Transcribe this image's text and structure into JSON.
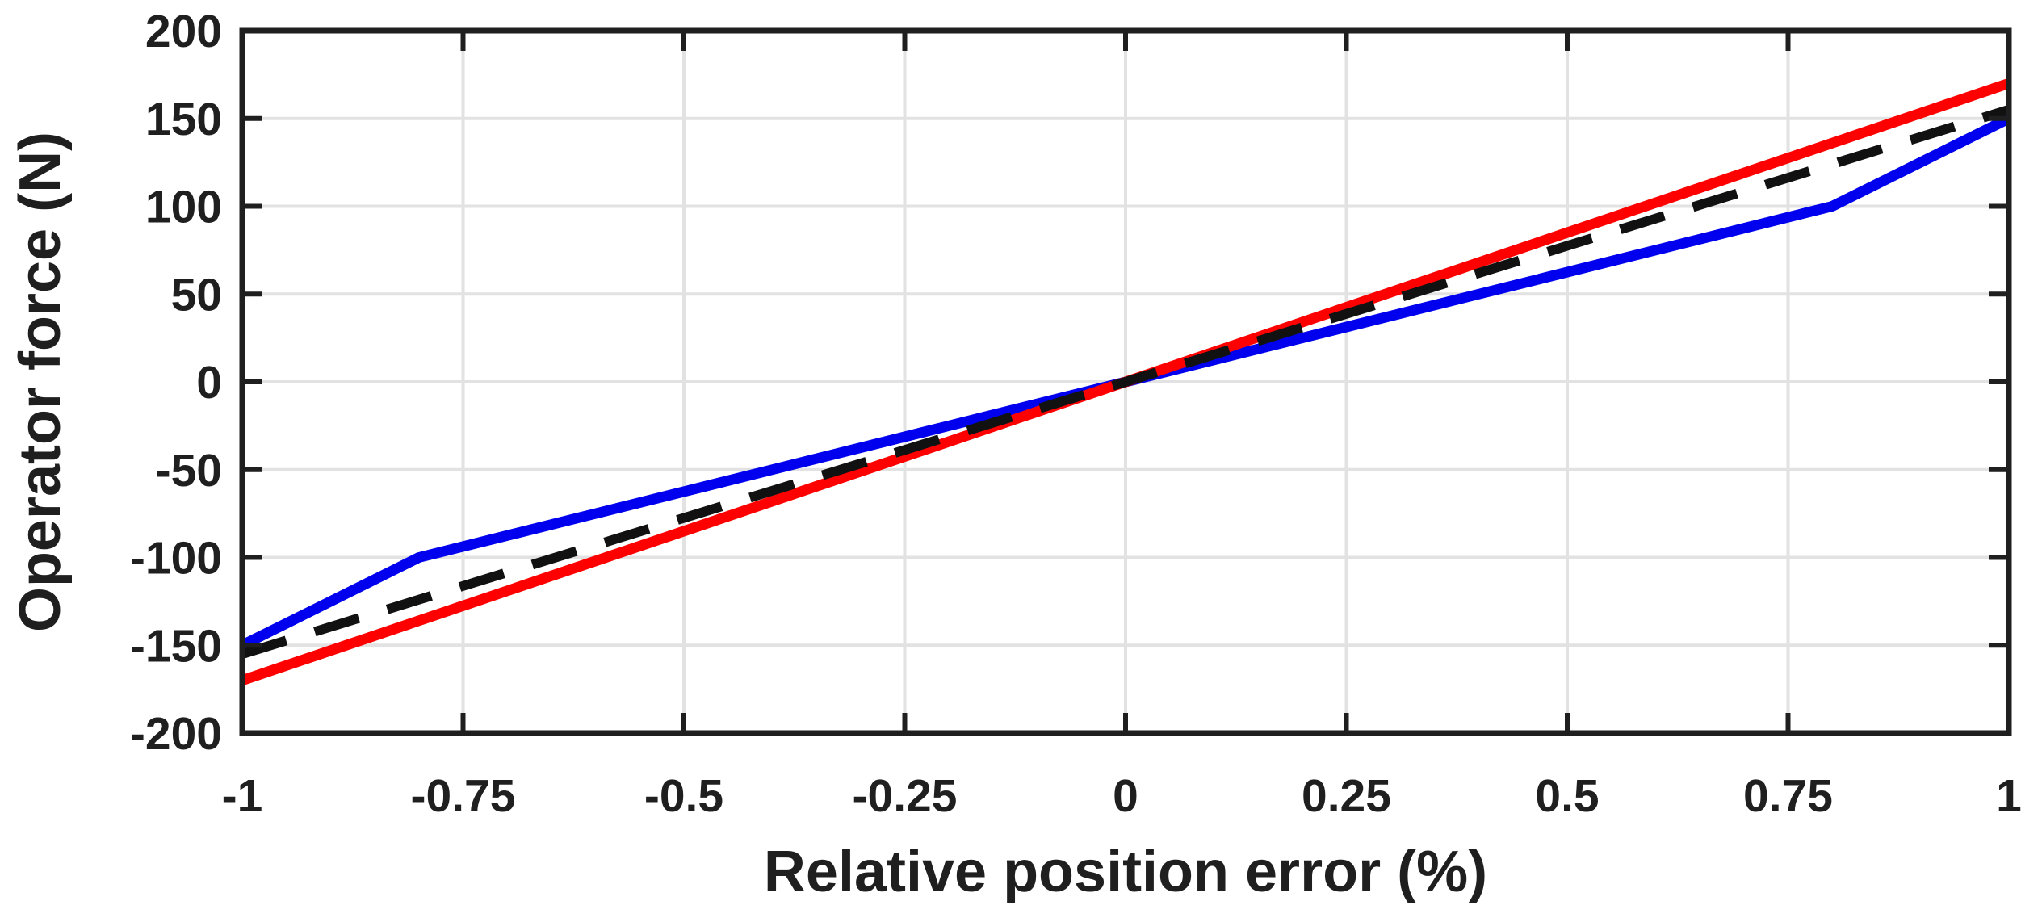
{
  "chart_data": {
    "type": "line",
    "title": "",
    "xlabel": "Relative position error (%)",
    "ylabel": "Operator force (N)",
    "xlim": [
      -1,
      1
    ],
    "ylim": [
      -200,
      200
    ],
    "grid": true,
    "legend": "none",
    "background_color": "#FFFFFF",
    "axis_color": "#1F1F1F",
    "grid_color": "#E2E2E2",
    "tick_label_color": "#1F1F1F",
    "x_ticks": [
      -1,
      -0.75,
      -0.5,
      -0.25,
      0,
      0.25,
      0.5,
      0.75,
      1
    ],
    "x_tick_labels": [
      "-1",
      "-0.75",
      "-0.5",
      "-0.25",
      "0",
      "0.25",
      "0.5",
      "0.75",
      "1"
    ],
    "y_ticks": [
      -200,
      -150,
      -100,
      -50,
      0,
      50,
      100,
      150,
      200
    ],
    "y_tick_labels": [
      "-200",
      "-150",
      "-100",
      "-50",
      "0",
      "50",
      "100",
      "150",
      "200"
    ],
    "series": [
      {
        "name": "blue-solid-curve",
        "color": "#0000EE",
        "style": "solid",
        "points": [
          [
            -1,
            -150
          ],
          [
            -0.8,
            -100
          ],
          [
            -0.6,
            -75
          ],
          [
            -0.4,
            -50
          ],
          [
            -0.2,
            -25
          ],
          [
            0,
            0
          ],
          [
            0.2,
            25
          ],
          [
            0.4,
            50
          ],
          [
            0.6,
            75
          ],
          [
            0.8,
            100
          ],
          [
            1,
            150
          ]
        ]
      },
      {
        "name": "red-solid-line",
        "color": "#FF0000",
        "style": "solid",
        "points": [
          [
            -1,
            -170
          ],
          [
            0,
            0
          ],
          [
            1,
            170
          ]
        ]
      },
      {
        "name": "black-dashed-line",
        "color": "#111111",
        "style": "dashed",
        "points": [
          [
            -1,
            -155
          ],
          [
            0,
            0
          ],
          [
            1,
            155
          ]
        ]
      }
    ]
  }
}
